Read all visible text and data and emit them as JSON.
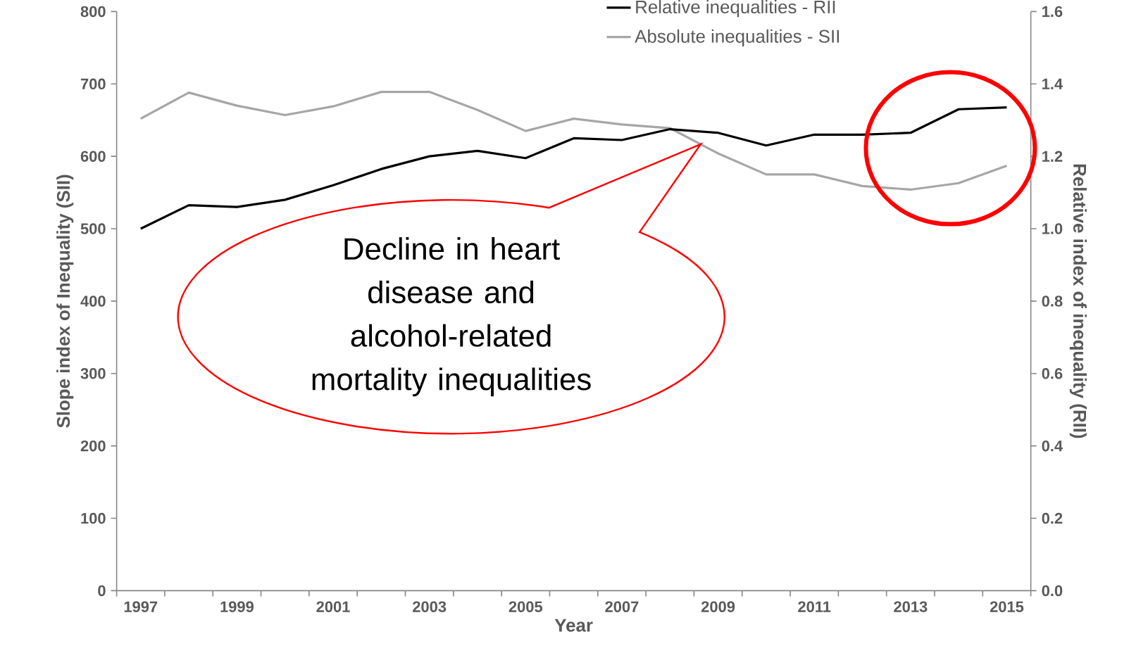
{
  "chart_data": {
    "type": "line",
    "xlabel": "Year",
    "ylabel": "Slope index of Inequality (SII)",
    "y2label": "Relative index of inequality (RII)",
    "categories": [
      "1997",
      null,
      "1999",
      null,
      "2001",
      null,
      "2003",
      null,
      "2005",
      null,
      "2007",
      null,
      "2009",
      null,
      "2011",
      null,
      "2013",
      null,
      "2015"
    ],
    "series": [
      {
        "name": "Relative inequalities - RII",
        "color": "#000000",
        "axis": "y2",
        "values": [
          1.0,
          1.065,
          1.06,
          1.08,
          1.12,
          1.165,
          1.2,
          1.215,
          1.195,
          1.25,
          1.245,
          1.275,
          1.265,
          1.23,
          1.26,
          1.26,
          1.265,
          1.33,
          1.335
        ]
      },
      {
        "name": "Absolute inequalities - SII",
        "color": "#a6a6a6",
        "values": [
          652,
          688,
          670,
          657,
          669,
          689,
          689,
          664,
          635,
          652,
          644,
          639,
          604,
          575,
          575,
          559,
          554,
          563,
          587
        ]
      }
    ],
    "ylim": [
      0,
      800
    ],
    "yticks": [
      0,
      100,
      200,
      300,
      400,
      500,
      600,
      700,
      800
    ],
    "y2lim": [
      0,
      1.6
    ],
    "y2ticks": [
      {
        "value": 0,
        "label": "0.0"
      },
      0.2,
      0.4,
      0.6,
      0.8,
      {
        "value": 1,
        "label": "1.0"
      },
      1.2,
      1.4,
      1.6
    ],
    "legend": "top right",
    "annotations": [
      "Decline in heart disease and alcohol-related mortality inequalities"
    ]
  }
}
